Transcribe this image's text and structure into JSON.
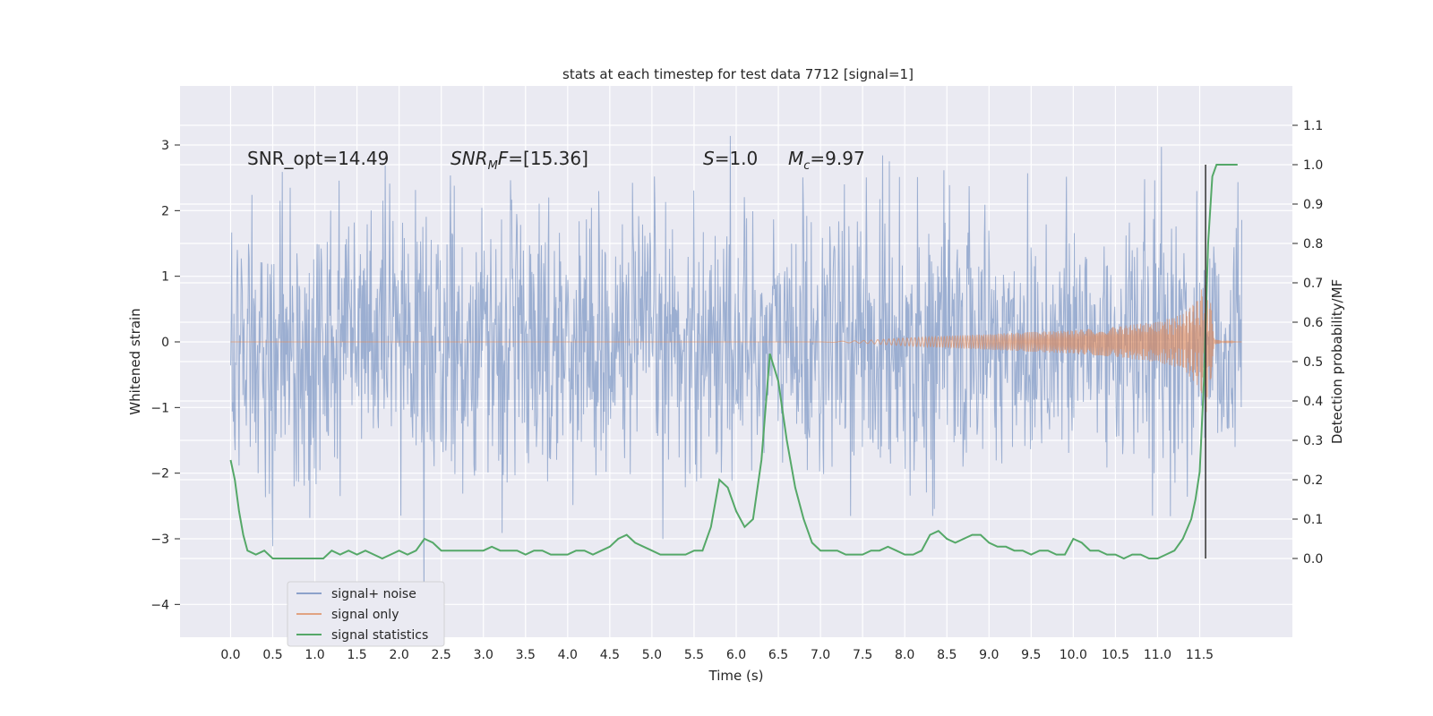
{
  "chart_data": {
    "type": "line",
    "title": "stats at each timestep for test data 7712 [signal=1]",
    "xlabel": "Time (s)",
    "ylabel": "Whitened strain",
    "ylabel_right": "Detection probability/MF",
    "xlim": [
      -0.6,
      12.6
    ],
    "ylim": [
      -4.5,
      3.9
    ],
    "ylim_right": [
      -0.2,
      1.2
    ],
    "x_ticks": [
      0.0,
      0.5,
      1.0,
      1.5,
      2.0,
      2.5,
      3.0,
      3.5,
      4.0,
      4.5,
      5.0,
      5.5,
      6.0,
      6.5,
      7.0,
      7.5,
      8.0,
      8.5,
      9.0,
      9.5,
      10.0,
      10.5,
      11.0,
      11.5
    ],
    "x_tick_labels": [
      "0.0",
      "0.5",
      "1.0",
      "1.5",
      "2.0",
      "2.5",
      "3.0",
      "3.5",
      "4.0",
      "4.5",
      "5.0",
      "5.5",
      "6.0",
      "6.5",
      "7.0",
      "7.5",
      "8.0",
      "8.5",
      "9.0",
      "9.5",
      "10.0",
      "10.5",
      "11.0",
      "11.5"
    ],
    "y_ticks": [
      -4,
      -3,
      -2,
      -1,
      0,
      1,
      2,
      3
    ],
    "y_tick_labels": [
      "−4",
      "−3",
      "−2",
      "−1",
      "0",
      "1",
      "2",
      "3"
    ],
    "y_right_ticks": [
      0.0,
      0.1,
      0.2,
      0.3,
      0.4,
      0.5,
      0.6,
      0.7,
      0.8,
      0.9,
      1.0,
      1.1
    ],
    "y_right_tick_labels": [
      "0.0",
      "0.1",
      "0.2",
      "0.3",
      "0.4",
      "0.5",
      "0.6",
      "0.7",
      "0.8",
      "0.9",
      "1.0",
      "1.1"
    ],
    "grid": true,
    "legend_position": "bottom-left",
    "annotations": [
      {
        "text": "SNR_opt=14.49",
        "x": 0.2,
        "y": 2.85
      },
      {
        "text": "SNR_MF=[15.36]",
        "x": 2.6,
        "y": 2.85
      },
      {
        "text": "S=1.0",
        "x": 5.6,
        "y": 2.85
      },
      {
        "text": "M_c=9.97",
        "x": 6.6,
        "y": 2.85
      }
    ],
    "marker_line": {
      "x": 11.57,
      "y_right_range": [
        0.0,
        1.0
      ],
      "color": "#333333"
    },
    "series": [
      {
        "name": "signal+ noise",
        "axis": "left",
        "color": "#4c72b0",
        "opacity": 0.5,
        "kind": "noise",
        "x_range": [
          0.0,
          12.0
        ],
        "std": 1.0,
        "min": -4.1,
        "max": 3.55
      },
      {
        "name": "signal only",
        "axis": "left",
        "color": "#dd8452",
        "opacity": 0.6,
        "kind": "chirp_envelope",
        "x": [
          0.0,
          7.0,
          7.5,
          8.0,
          8.5,
          9.0,
          9.5,
          10.0,
          10.5,
          11.0,
          11.3,
          11.5,
          11.6,
          11.65,
          11.7,
          12.0
        ],
        "envelope": [
          0.0,
          0.0,
          0.02,
          0.06,
          0.09,
          0.12,
          0.15,
          0.18,
          0.23,
          0.31,
          0.42,
          0.7,
          1.2,
          0.3,
          0.03,
          0.0
        ]
      },
      {
        "name": "signal statistics",
        "axis": "right",
        "color": "#55a868",
        "x": [
          0.0,
          0.05,
          0.1,
          0.15,
          0.2,
          0.3,
          0.4,
          0.5,
          0.6,
          0.7,
          0.8,
          0.9,
          1.0,
          1.1,
          1.2,
          1.3,
          1.4,
          1.5,
          1.6,
          1.7,
          1.8,
          1.9,
          2.0,
          2.1,
          2.2,
          2.3,
          2.4,
          2.5,
          2.6,
          2.7,
          2.8,
          2.9,
          3.0,
          3.1,
          3.2,
          3.3,
          3.4,
          3.5,
          3.6,
          3.7,
          3.8,
          3.9,
          4.0,
          4.1,
          4.2,
          4.3,
          4.4,
          4.5,
          4.6,
          4.7,
          4.8,
          4.9,
          5.0,
          5.1,
          5.2,
          5.3,
          5.4,
          5.5,
          5.6,
          5.7,
          5.8,
          5.9,
          6.0,
          6.1,
          6.2,
          6.3,
          6.4,
          6.5,
          6.6,
          6.7,
          6.8,
          6.9,
          7.0,
          7.1,
          7.2,
          7.3,
          7.4,
          7.5,
          7.6,
          7.7,
          7.8,
          7.9,
          8.0,
          8.1,
          8.2,
          8.3,
          8.4,
          8.5,
          8.6,
          8.7,
          8.8,
          8.9,
          9.0,
          9.1,
          9.2,
          9.3,
          9.4,
          9.5,
          9.6,
          9.7,
          9.8,
          9.9,
          10.0,
          10.1,
          10.2,
          10.3,
          10.4,
          10.5,
          10.6,
          10.7,
          10.8,
          10.9,
          11.0,
          11.1,
          11.2,
          11.3,
          11.4,
          11.45,
          11.5,
          11.55,
          11.6,
          11.65,
          11.7,
          11.8,
          11.9,
          11.95
        ],
        "y": [
          0.25,
          0.2,
          0.12,
          0.06,
          0.02,
          0.01,
          0.02,
          0.0,
          0.0,
          0.0,
          0.0,
          0.0,
          0.0,
          0.0,
          0.02,
          0.01,
          0.02,
          0.01,
          0.02,
          0.01,
          0.0,
          0.01,
          0.02,
          0.01,
          0.02,
          0.05,
          0.04,
          0.02,
          0.02,
          0.02,
          0.02,
          0.02,
          0.02,
          0.03,
          0.02,
          0.02,
          0.02,
          0.01,
          0.02,
          0.02,
          0.01,
          0.01,
          0.01,
          0.02,
          0.02,
          0.01,
          0.02,
          0.03,
          0.05,
          0.06,
          0.04,
          0.03,
          0.02,
          0.01,
          0.01,
          0.01,
          0.01,
          0.02,
          0.02,
          0.08,
          0.2,
          0.18,
          0.12,
          0.08,
          0.1,
          0.25,
          0.52,
          0.45,
          0.3,
          0.18,
          0.1,
          0.04,
          0.02,
          0.02,
          0.02,
          0.01,
          0.01,
          0.01,
          0.02,
          0.02,
          0.03,
          0.02,
          0.01,
          0.01,
          0.02,
          0.06,
          0.07,
          0.05,
          0.04,
          0.05,
          0.06,
          0.06,
          0.04,
          0.03,
          0.03,
          0.02,
          0.02,
          0.01,
          0.02,
          0.02,
          0.01,
          0.01,
          0.05,
          0.04,
          0.02,
          0.02,
          0.01,
          0.01,
          0.0,
          0.01,
          0.01,
          0.0,
          0.0,
          0.01,
          0.02,
          0.05,
          0.1,
          0.15,
          0.22,
          0.45,
          0.8,
          0.97,
          1.0,
          1.0,
          1.0,
          1.0
        ]
      }
    ]
  }
}
